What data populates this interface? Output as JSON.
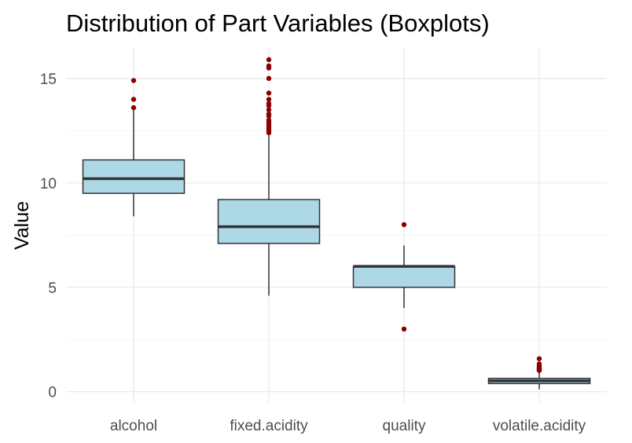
{
  "chart_data": {
    "type": "boxplot",
    "title": "Distribution of Part Variables (Boxplots)",
    "xlabel": "",
    "ylabel": "Value",
    "categories": [
      "alcohol",
      "fixed.acidity",
      "quality",
      "volatile.acidity"
    ],
    "ylim": [
      -0.5,
      16.5
    ],
    "yticks": [
      0,
      5,
      10,
      15
    ],
    "grid": true,
    "legend": "none",
    "box_fill": "#add8e6",
    "box_stroke": "#333333",
    "outlier_color": "#8b0000",
    "boxes": [
      {
        "category": "alcohol",
        "lower_whisker": 8.4,
        "q1": 9.5,
        "median": 10.2,
        "q3": 11.1,
        "upper_whisker": 13.6,
        "outliers": [
          14.0,
          13.6,
          14.9
        ]
      },
      {
        "category": "fixed.acidity",
        "lower_whisker": 4.6,
        "q1": 7.1,
        "median": 7.9,
        "q3": 9.2,
        "upper_whisker": 12.3,
        "outliers": [
          12.4,
          12.5,
          12.6,
          12.7,
          12.8,
          12.9,
          13.0,
          13.2,
          13.3,
          13.5,
          13.7,
          13.8,
          14.0,
          14.3,
          15.0,
          15.5,
          15.6,
          15.9
        ]
      },
      {
        "category": "quality",
        "lower_whisker": 4.0,
        "q1": 5.0,
        "median": 6.0,
        "q3": 6.0,
        "upper_whisker": 7.0,
        "outliers": [
          3.0,
          8.0
        ]
      },
      {
        "category": "volatile.acidity",
        "lower_whisker": 0.12,
        "q1": 0.39,
        "median": 0.52,
        "q3": 0.64,
        "upper_whisker": 1.01,
        "outliers": [
          1.02,
          1.04,
          1.07,
          1.09,
          1.13,
          1.18,
          1.24,
          1.33,
          1.58
        ]
      }
    ]
  }
}
